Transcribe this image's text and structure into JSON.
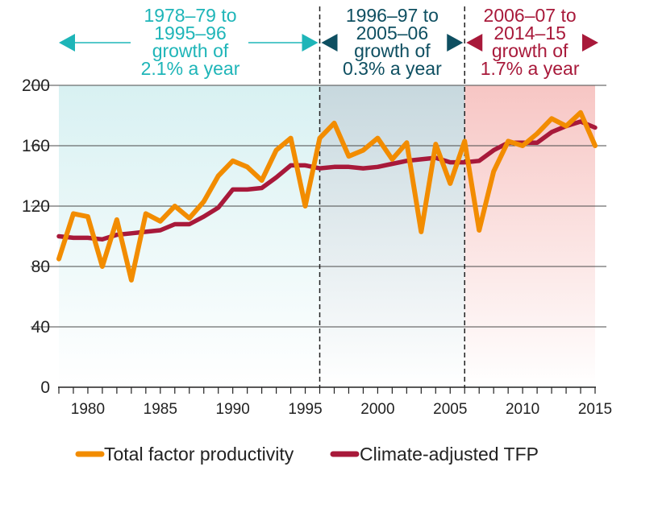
{
  "chart_data": {
    "type": "line",
    "title": "",
    "xlabel": "",
    "ylabel": "",
    "xlim": [
      1978,
      2015
    ],
    "ylim": [
      0,
      200
    ],
    "yticks": [
      "0",
      "40",
      "80",
      "120",
      "160",
      "200"
    ],
    "xticks": [
      "1980",
      "1985",
      "1990",
      "1995",
      "2000",
      "2005",
      "2010",
      "2015"
    ],
    "x": [
      1978,
      1979,
      1980,
      1981,
      1982,
      1983,
      1984,
      1985,
      1986,
      1987,
      1988,
      1989,
      1990,
      1991,
      1992,
      1993,
      1994,
      1995,
      1996,
      1997,
      1998,
      1999,
      2000,
      2001,
      2002,
      2003,
      2004,
      2005,
      2006,
      2007,
      2008,
      2009,
      2010,
      2011,
      2012,
      2013,
      2014,
      2015
    ],
    "series": [
      {
        "name": "Total factor productivity",
        "color": "#f28c00",
        "values": [
          85,
          115,
          113,
          80,
          111,
          71,
          115,
          110,
          120,
          112,
          123,
          140,
          150,
          146,
          137,
          157,
          165,
          120,
          165,
          175,
          153,
          157,
          165,
          151,
          162,
          103,
          161,
          135,
          163,
          104,
          143,
          163,
          160,
          168,
          178,
          173,
          182,
          160
        ]
      },
      {
        "name": "Climate-adjusted TFP",
        "color": "#a8193a",
        "values": [
          100,
          99,
          99,
          98,
          101,
          102,
          103,
          104,
          108,
          108,
          113,
          119,
          131,
          131,
          132,
          139,
          147,
          147,
          145,
          146,
          146,
          145,
          146,
          148,
          150,
          151,
          152,
          149,
          149,
          150,
          157,
          162,
          162,
          162,
          169,
          173,
          176,
          172
        ]
      }
    ],
    "periods": [
      {
        "lines": [
          "1978–79 to",
          "1995–96",
          "growth of",
          "2.1% a year"
        ],
        "color": "#1eb5b8",
        "from": 1978,
        "to": 1996,
        "band": "#d8f1f2"
      },
      {
        "lines": [
          "1996–97 to",
          "2005–06",
          "growth of",
          "0.3% a year"
        ],
        "color": "#0e4f61",
        "from": 1996,
        "to": 2006,
        "band": "#c7d8de"
      },
      {
        "lines": [
          "2006–07 to",
          "2014–15",
          "growth of",
          "1.7% a year"
        ],
        "color": "#a8193a",
        "from": 2006,
        "to": 2015,
        "band": "#f7c6c4"
      }
    ],
    "legend": {
      "position": "bottom"
    }
  },
  "legend_labels": [
    "Total factor productivity",
    "Climate-adjusted TFP"
  ]
}
